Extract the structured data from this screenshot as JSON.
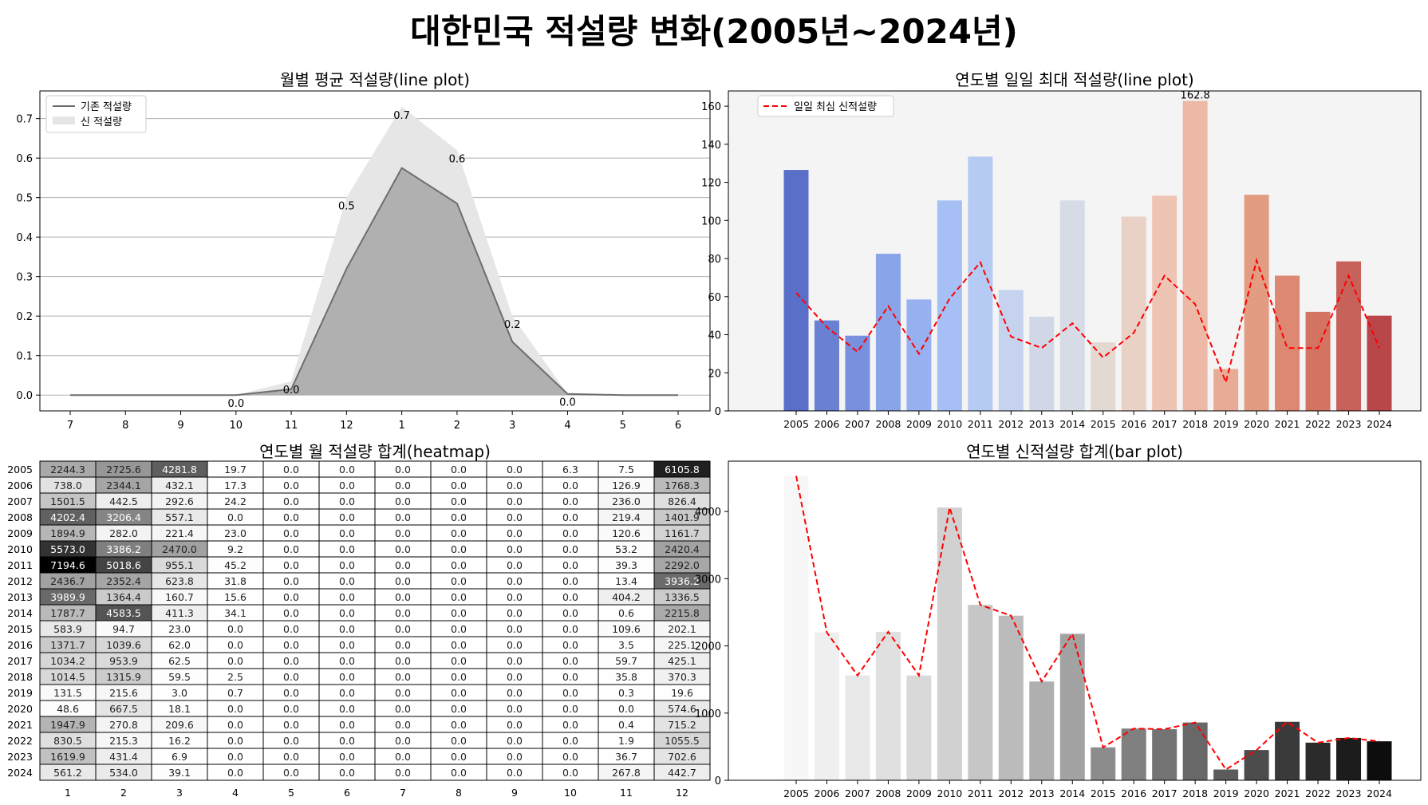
{
  "suptitle": "대한민국 적설량 변화(2005년~2024년)",
  "chart_data": [
    {
      "type": "area",
      "title": "월별 평균 적설량(line plot)",
      "categories": [
        "7",
        "8",
        "9",
        "10",
        "11",
        "12",
        "1",
        "2",
        "3",
        "4",
        "5",
        "6"
      ],
      "series": [
        {
          "name": "기존 적설량",
          "values": [
            0,
            0,
            0,
            0,
            0.015,
            0.32,
            0.575,
            0.485,
            0.135,
            0.003,
            0,
            0
          ]
        },
        {
          "name": "신 적설량",
          "values": [
            0,
            0,
            0,
            0,
            0.035,
            0.5,
            0.73,
            0.62,
            0.2,
            0.003,
            0,
            0
          ]
        }
      ],
      "data_labels": [
        {
          "category": "10",
          "text": "0.0"
        },
        {
          "category": "11",
          "text": "0.0"
        },
        {
          "category": "12",
          "text": "0.5"
        },
        {
          "category": "1",
          "text": "0.7"
        },
        {
          "category": "2",
          "text": "0.6"
        },
        {
          "category": "3",
          "text": "0.2"
        },
        {
          "category": "4",
          "text": "0.0"
        }
      ],
      "yticks": [
        "0.0",
        "0.1",
        "0.2",
        "0.3",
        "0.4",
        "0.5",
        "0.6",
        "0.7"
      ],
      "ylim": [
        -0.04,
        0.77
      ],
      "grid": "y",
      "legend": "top-left"
    },
    {
      "type": "bar",
      "title": "연도별 일일 최대 적설량(line plot)",
      "categories": [
        "2005",
        "2006",
        "2007",
        "2008",
        "2009",
        "2010",
        "2011",
        "2012",
        "2013",
        "2014",
        "2015",
        "2016",
        "2017",
        "2018",
        "2019",
        "2020",
        "2021",
        "2022",
        "2023",
        "2024"
      ],
      "bar_values": [
        126.5,
        47.5,
        39.5,
        82.5,
        58.5,
        110.5,
        133.5,
        63.5,
        49.5,
        110.5,
        36,
        102,
        113,
        162.8,
        22,
        113.5,
        71,
        52,
        78.5,
        50
      ],
      "line_series": {
        "name": "일일 최심 신적설량",
        "values": [
          62,
          44,
          31,
          55,
          30,
          59,
          78,
          39,
          33,
          46,
          28,
          41,
          71,
          56,
          15,
          79,
          33,
          33,
          71,
          33
        ]
      },
      "max_label": "162.8",
      "yticks": [
        "0",
        "20",
        "40",
        "60",
        "80",
        "100",
        "120",
        "140",
        "160"
      ],
      "ylim": [
        0,
        168
      ],
      "legend": "top-left",
      "colors": [
        "#5a6fc8",
        "#6a80d3",
        "#7890de",
        "#8aa4e8",
        "#97b0ef",
        "#a6c0f5",
        "#b5cbf3",
        "#c6d3ef",
        "#d0d8e8",
        "#d6dbe6",
        "#e4d9d2",
        "#e9d1c6",
        "#eec4b4",
        "#ebb9a5",
        "#e8ab95",
        "#e29c82",
        "#dc8872",
        "#d37463",
        "#c6625a",
        "#b9474a"
      ],
      "background": "#f4f4f4"
    },
    {
      "type": "heatmap",
      "title": "연도별 월 적설량 합계(heatmap)",
      "row_labels": [
        "2005",
        "2006",
        "2007",
        "2008",
        "2009",
        "2010",
        "2011",
        "2012",
        "2013",
        "2014",
        "2015",
        "2016",
        "2017",
        "2018",
        "2019",
        "2020",
        "2021",
        "2022",
        "2023",
        "2024"
      ],
      "col_labels": [
        "1",
        "2",
        "3",
        "4",
        "5",
        "6",
        "7",
        "8",
        "9",
        "10",
        "11",
        "12"
      ],
      "cells": [
        [
          "2244.3",
          "2725.6",
          "4281.8",
          "19.7",
          "0.0",
          "0.0",
          "0.0",
          "0.0",
          "0.0",
          "6.3",
          "7.5",
          "6105.8"
        ],
        [
          "738.0",
          "2344.1",
          "432.1",
          "17.3",
          "0.0",
          "0.0",
          "0.0",
          "0.0",
          "0.0",
          "0.0",
          "126.9",
          "1768.3"
        ],
        [
          "1501.5",
          "442.5",
          "292.6",
          "24.2",
          "0.0",
          "0.0",
          "0.0",
          "0.0",
          "0.0",
          "0.0",
          "236.0",
          "826.4"
        ],
        [
          "4202.4",
          "3206.4",
          "557.1",
          "0.0",
          "0.0",
          "0.0",
          "0.0",
          "0.0",
          "0.0",
          "0.0",
          "219.4",
          "1401.9"
        ],
        [
          "1894.9",
          "282.0",
          "221.4",
          "23.0",
          "0.0",
          "0.0",
          "0.0",
          "0.0",
          "0.0",
          "0.0",
          "120.6",
          "1161.7"
        ],
        [
          "5573.0",
          "3386.2",
          "2470.0",
          "9.2",
          "0.0",
          "0.0",
          "0.0",
          "0.0",
          "0.0",
          "0.0",
          "53.2",
          "2420.4"
        ],
        [
          "7194.6",
          "5018.6",
          "955.1",
          "45.2",
          "0.0",
          "0.0",
          "0.0",
          "0.0",
          "0.0",
          "0.0",
          "39.3",
          "2292.0"
        ],
        [
          "2436.7",
          "2352.4",
          "623.8",
          "31.8",
          "0.0",
          "0.0",
          "0.0",
          "0.0",
          "0.0",
          "0.0",
          "13.4",
          "3936.2"
        ],
        [
          "3989.9",
          "1364.4",
          "160.7",
          "15.6",
          "0.0",
          "0.0",
          "0.0",
          "0.0",
          "0.0",
          "0.0",
          "404.2",
          "1336.5"
        ],
        [
          "1787.7",
          "4583.5",
          "411.3",
          "34.1",
          "0.0",
          "0.0",
          "0.0",
          "0.0",
          "0.0",
          "0.0",
          "0.6",
          "2215.8"
        ],
        [
          "583.9",
          "94.7",
          "23.0",
          "0.0",
          "0.0",
          "0.0",
          "0.0",
          "0.0",
          "0.0",
          "0.0",
          "109.6",
          "202.1"
        ],
        [
          "1371.7",
          "1039.6",
          "62.0",
          "0.0",
          "0.0",
          "0.0",
          "0.0",
          "0.0",
          "0.0",
          "0.0",
          "3.5",
          "225.1"
        ],
        [
          "1034.2",
          "953.9",
          "62.5",
          "0.0",
          "0.0",
          "0.0",
          "0.0",
          "0.0",
          "0.0",
          "0.0",
          "59.7",
          "425.1"
        ],
        [
          "1014.5",
          "1315.9",
          "59.5",
          "2.5",
          "0.0",
          "0.0",
          "0.0",
          "0.0",
          "0.0",
          "0.0",
          "35.8",
          "370.3"
        ],
        [
          "131.5",
          "215.6",
          "3.0",
          "0.7",
          "0.0",
          "0.0",
          "0.0",
          "0.0",
          "0.0",
          "0.0",
          "0.3",
          "19.6"
        ],
        [
          "48.6",
          "667.5",
          "18.1",
          "0.0",
          "0.0",
          "0.0",
          "0.0",
          "0.0",
          "0.0",
          "0.0",
          "0.0",
          "574.6"
        ],
        [
          "1947.9",
          "270.8",
          "209.6",
          "0.0",
          "0.0",
          "0.0",
          "0.0",
          "0.0",
          "0.0",
          "0.0",
          "0.4",
          "715.2"
        ],
        [
          "830.5",
          "215.3",
          "16.2",
          "0.0",
          "0.0",
          "0.0",
          "0.0",
          "0.0",
          "0.0",
          "0.0",
          "1.9",
          "1055.5"
        ],
        [
          "1619.9",
          "431.4",
          "6.9",
          "0.0",
          "0.0",
          "0.0",
          "0.0",
          "0.0",
          "0.0",
          "0.0",
          "36.7",
          "702.6"
        ],
        [
          "561.2",
          "534.0",
          "39.1",
          "0.0",
          "0.0",
          "0.0",
          "0.0",
          "0.0",
          "0.0",
          "0.0",
          "267.8",
          "442.7"
        ]
      ]
    },
    {
      "type": "bar",
      "title": "연도별 신적설량 합계(bar plot)",
      "categories": [
        "2005",
        "2006",
        "2007",
        "2008",
        "2009",
        "2010",
        "2011",
        "2012",
        "2013",
        "2014",
        "2015",
        "2016",
        "2017",
        "2018",
        "2019",
        "2020",
        "2021",
        "2022",
        "2023",
        "2024"
      ],
      "bar_values": [
        4530,
        2200,
        1560,
        2210,
        1560,
        4060,
        2610,
        2450,
        1470,
        2180,
        490,
        770,
        760,
        860,
        160,
        450,
        870,
        560,
        630,
        580
      ],
      "line_values": [
        4530,
        2200,
        1560,
        2210,
        1560,
        4060,
        2610,
        2450,
        1470,
        2180,
        490,
        770,
        760,
        860,
        160,
        450,
        870,
        560,
        630,
        580
      ],
      "yticks": [
        "0",
        "1000",
        "2000",
        "3000",
        "4000"
      ],
      "ylim": [
        0,
        4750
      ],
      "colors": [
        "#f7f7f7",
        "#efefef",
        "#e8e8e8",
        "#e0e0e0",
        "#d9d9d9",
        "#d1d1d1",
        "#c6c6c6",
        "#bbbbbb",
        "#afafaf",
        "#a3a3a3",
        "#8c8c8c",
        "#808080",
        "#747474",
        "#686868",
        "#5c5c5c",
        "#4c4c4c",
        "#3a3a3a",
        "#2b2b2b",
        "#1c1c1c",
        "#0d0d0d"
      ]
    }
  ]
}
